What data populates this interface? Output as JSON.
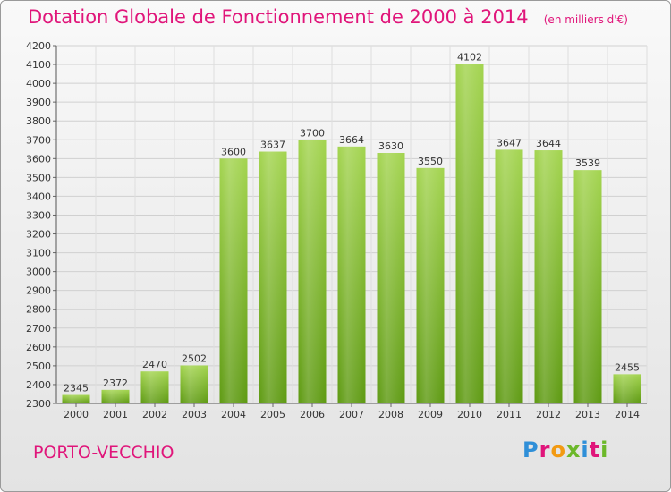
{
  "header": {
    "title": "Dotation Globale de Fonctionnement de 2000 à 2014",
    "subtitle": "(en milliers d'€)"
  },
  "footer": {
    "commune": "PORTO-VECCHIO",
    "logo": "Proxiti"
  },
  "colors": {
    "accent": "#e0157a",
    "bar_light": "#9fd04a",
    "bar_dark": "#5e9a12"
  },
  "chart_data": {
    "type": "bar",
    "title": "Dotation Globale de Fonctionnement de 2000 à 2014",
    "subtitle": "(en milliers d'€)",
    "categories": [
      "2000",
      "2001",
      "2002",
      "2003",
      "2004",
      "2005",
      "2006",
      "2007",
      "2008",
      "2009",
      "2010",
      "2011",
      "2012",
      "2013",
      "2014"
    ],
    "values": [
      2345,
      2372,
      2470,
      2502,
      3600,
      3637,
      3700,
      3664,
      3630,
      3550,
      4102,
      3647,
      3644,
      3539,
      2455
    ],
    "ylim": [
      2300,
      4200
    ],
    "yticks": [
      2300,
      2400,
      2500,
      2600,
      2700,
      2800,
      2900,
      3000,
      3100,
      3200,
      3300,
      3400,
      3500,
      3600,
      3700,
      3800,
      3900,
      4000,
      4100,
      4200
    ],
    "xlabel": "",
    "ylabel": "",
    "grid": true,
    "data_labels": true
  }
}
